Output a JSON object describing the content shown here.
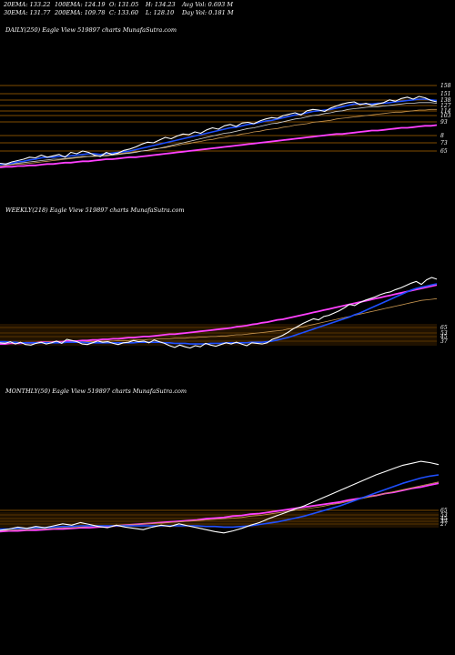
{
  "header": {
    "ema20": "20EMA: 133.22",
    "ema100": "100EMA: 124.19",
    "open": "O: 131.05",
    "high": "H: 134.23",
    "avg_vol": "Avg Vol: 0.693 M",
    "ema30": "30EMA: 131.77",
    "ema200": "200EMA: 109.78",
    "close": "C: 133.60",
    "low": "L: 128.10",
    "day_vol": "Day Vol: 0.181 M"
  },
  "panels": [
    {
      "label": "DAILY(250) Eagle  View  519897 charts MunafaSutra.com"
    },
    {
      "label": "WEEKLY(218) Eagle  View  519897 charts MunafaSutra.com"
    },
    {
      "label": "MONTHLY(50) Eagle  View  519897 charts MunafaSutra.com"
    }
  ],
  "colors": {
    "background": "#000000",
    "price": "#ffffff",
    "ema_short": "#1e4fff",
    "ema_long": "#ff40ff",
    "level_band": "#c87800"
  },
  "chart_data": [
    {
      "type": "line",
      "panel": "daily",
      "ticks": [
        "158",
        "151",
        "138",
        "127",
        "114",
        "103",
        "93",
        "8",
        "73",
        "65"
      ],
      "series": [
        {
          "values": [
            54,
            53,
            56,
            58,
            60,
            63,
            62,
            66,
            63,
            65,
            67,
            63,
            70,
            68,
            72,
            70,
            66,
            64,
            70,
            67,
            69,
            73,
            75,
            78,
            82,
            85,
            84,
            88,
            92,
            90,
            94,
            97,
            96,
            100,
            98,
            103,
            106,
            104,
            109,
            111,
            108,
            113,
            114,
            112,
            116,
            119,
            121,
            120,
            124,
            126,
            128,
            125,
            131,
            133,
            132,
            130,
            135,
            138,
            141,
            143,
            144,
            140,
            142,
            139,
            141,
            143,
            147,
            145,
            149,
            151,
            148,
            152,
            150,
            146,
            144
          ]
        },
        {
          "values": [
            52,
            53,
            54,
            56,
            57,
            59,
            60,
            62,
            63,
            63,
            64,
            64,
            65,
            66,
            67,
            68,
            68,
            67,
            68,
            69,
            70,
            71,
            72,
            74,
            76,
            78,
            80,
            82,
            84,
            86,
            88,
            90,
            92,
            94,
            96,
            98,
            100,
            102,
            104,
            106,
            107,
            109,
            111,
            112,
            114,
            116,
            117,
            119,
            121,
            123,
            125,
            126,
            128,
            130,
            131,
            132,
            133,
            135,
            137,
            139,
            141,
            141,
            141,
            141,
            142,
            142,
            143,
            144,
            145,
            146,
            147,
            148,
            148,
            147,
            146
          ]
        },
        {
          "values": [
            52,
            52,
            53,
            54,
            55,
            56,
            57,
            58,
            59,
            60,
            60,
            61,
            62,
            63,
            64,
            64,
            65,
            65,
            65,
            66,
            67,
            68,
            69,
            70,
            72,
            73,
            75,
            76,
            78,
            80,
            82,
            84,
            86,
            88,
            90,
            92,
            94,
            96,
            98,
            99,
            101,
            103,
            105,
            106,
            108,
            110,
            112,
            113,
            115,
            117,
            119,
            120,
            122,
            124,
            125,
            127,
            128,
            130,
            131,
            133,
            134,
            135,
            136,
            137,
            137,
            138,
            139,
            140,
            141,
            142,
            142,
            143,
            143,
            143,
            142
          ]
        },
        {
          "values": [
            50,
            51,
            52,
            53,
            53,
            54,
            55,
            56,
            57,
            58,
            59,
            60,
            61,
            62,
            63,
            64,
            64,
            65,
            66,
            67,
            68,
            69,
            70,
            71,
            72,
            73,
            74,
            76,
            77,
            79,
            80,
            82,
            83,
            85,
            86,
            88,
            89,
            91,
            92,
            94,
            95,
            97,
            98,
            100,
            101,
            103,
            104,
            105,
            107,
            108,
            110,
            111,
            112,
            114,
            115,
            116,
            117,
            119,
            120,
            121,
            122,
            123,
            124,
            125,
            126,
            127,
            128,
            129,
            129,
            130,
            131,
            132,
            132,
            133,
            133
          ]
        },
        {
          "values": [
            48,
            49,
            49,
            50,
            50,
            51,
            51,
            52,
            53,
            53,
            54,
            55,
            55,
            56,
            57,
            57,
            58,
            59,
            60,
            60,
            61,
            62,
            63,
            63,
            64,
            65,
            66,
            67,
            68,
            69,
            70,
            71,
            72,
            73,
            74,
            75,
            76,
            77,
            78,
            79,
            80,
            81,
            82,
            83,
            84,
            85,
            86,
            87,
            88,
            89,
            90,
            91,
            92,
            93,
            94,
            95,
            96,
            97,
            97,
            98,
            99,
            100,
            101,
            102,
            102,
            103,
            104,
            105,
            106,
            106,
            107,
            108,
            109,
            109,
            110
          ]
        }
      ]
    },
    {
      "type": "line",
      "panel": "weekly",
      "ticks": [
        "65",
        "53",
        "45",
        "37"
      ],
      "series": [
        {
          "values": [
            38,
            37,
            40,
            36,
            39,
            35,
            34,
            37,
            39,
            36,
            38,
            41,
            37,
            44,
            42,
            40,
            36,
            35,
            38,
            41,
            39,
            40,
            37,
            35,
            38,
            39,
            42,
            40,
            41,
            38,
            43,
            40,
            37,
            33,
            30,
            34,
            31,
            29,
            33,
            31,
            37,
            34,
            32,
            35,
            38,
            36,
            39,
            36,
            33,
            38,
            37,
            36,
            38,
            44,
            47,
            51,
            56,
            62,
            67,
            72,
            76,
            80,
            78,
            84,
            86,
            90,
            94,
            99,
            105,
            103,
            108,
            112,
            115,
            118,
            122,
            125,
            127,
            131,
            134,
            138,
            142,
            145,
            140,
            148,
            152,
            149
          ]
        },
        {
          "values": [
            40,
            40,
            39,
            39,
            38,
            38,
            38,
            38,
            38,
            38,
            38,
            38,
            38,
            39,
            39,
            39,
            39,
            38,
            38,
            38,
            38,
            38,
            38,
            38,
            38,
            38,
            38,
            39,
            39,
            39,
            39,
            39,
            38,
            38,
            37,
            37,
            37,
            36,
            36,
            36,
            36,
            37,
            37,
            37,
            38,
            38,
            38,
            38,
            38,
            39,
            39,
            39,
            40,
            41,
            43,
            45,
            47,
            50,
            53,
            56,
            59,
            62,
            65,
            68,
            71,
            74,
            77,
            80,
            83,
            87,
            90,
            94,
            98,
            102,
            106,
            110,
            114,
            118,
            122,
            126,
            130,
            133,
            135,
            137,
            139,
            141
          ]
        },
        {
          "values": [
            38,
            38,
            38,
            38,
            38,
            38,
            38,
            38,
            38,
            39,
            39,
            39,
            39,
            39,
            40,
            40,
            40,
            40,
            40,
            41,
            41,
            41,
            41,
            42,
            42,
            42,
            43,
            43,
            43,
            44,
            44,
            45,
            45,
            45,
            46,
            46,
            46,
            47,
            47,
            48,
            48,
            49,
            49,
            50,
            50,
            51,
            52,
            52,
            53,
            54,
            55,
            56,
            57,
            58,
            59,
            60,
            62,
            63,
            65,
            66,
            68,
            70,
            72,
            74,
            76,
            78,
            80,
            82,
            84,
            86,
            88,
            90,
            92,
            94,
            96,
            98,
            100,
            102,
            104,
            106,
            108,
            110,
            112,
            113,
            114,
            115
          ]
        },
        {
          "values": [
            36,
            36,
            37,
            37,
            37,
            38,
            38,
            38,
            39,
            39,
            39,
            40,
            40,
            41,
            41,
            41,
            42,
            42,
            43,
            43,
            44,
            44,
            45,
            45,
            46,
            47,
            47,
            48,
            49,
            49,
            50,
            51,
            52,
            53,
            53,
            54,
            55,
            56,
            57,
            58,
            59,
            60,
            61,
            62,
            63,
            64,
            66,
            67,
            68,
            70,
            71,
            73,
            74,
            76,
            78,
            79,
            81,
            83,
            85,
            87,
            89,
            91,
            93,
            95,
            97,
            99,
            101,
            103,
            105,
            107,
            109,
            111,
            113,
            115,
            117,
            119,
            121,
            123,
            125,
            127,
            129,
            131,
            133,
            135,
            137,
            139
          ]
        }
      ]
    },
    {
      "type": "line",
      "panel": "monthly",
      "ticks": [
        "65",
        "53",
        "45",
        "37",
        "27"
      ],
      "series": [
        {
          "values": [
            30,
            32,
            35,
            33,
            36,
            34,
            37,
            40,
            38,
            42,
            39,
            36,
            34,
            38,
            35,
            33,
            31,
            35,
            38,
            36,
            40,
            37,
            34,
            31,
            28,
            26,
            29,
            33,
            38,
            42,
            48,
            53,
            58,
            63,
            68,
            74,
            80,
            86,
            92,
            98,
            104,
            110,
            116,
            121,
            126,
            131,
            134,
            137,
            135,
            132
          ]
        },
        {
          "values": [
            32,
            32,
            33,
            33,
            34,
            34,
            35,
            36,
            36,
            37,
            37,
            37,
            37,
            37,
            37,
            37,
            37,
            37,
            37,
            37,
            37,
            37,
            37,
            36,
            36,
            35,
            35,
            36,
            37,
            39,
            41,
            43,
            46,
            49,
            52,
            56,
            60,
            64,
            68,
            73,
            78,
            83,
            88,
            93,
            98,
            103,
            107,
            111,
            114,
            116
          ]
        },
        {
          "values": [
            30,
            30,
            31,
            31,
            32,
            32,
            33,
            34,
            34,
            35,
            36,
            36,
            37,
            38,
            38,
            39,
            40,
            41,
            41,
            42,
            43,
            44,
            45,
            46,
            47,
            48,
            49,
            50,
            52,
            53,
            55,
            57,
            59,
            61,
            63,
            65,
            67,
            70,
            72,
            75,
            78,
            81,
            84,
            87,
            90,
            93,
            96,
            99,
            102,
            105
          ]
        },
        {
          "values": [
            28,
            29,
            29,
            30,
            30,
            31,
            32,
            32,
            33,
            34,
            34,
            35,
            36,
            37,
            38,
            39,
            40,
            41,
            42,
            43,
            44,
            45,
            46,
            48,
            49,
            50,
            52,
            53,
            55,
            56,
            58,
            60,
            62,
            64,
            66,
            68,
            70,
            72,
            74,
            77,
            79,
            82,
            84,
            87,
            89,
            92,
            95,
            97,
            100,
            103
          ]
        }
      ]
    }
  ]
}
